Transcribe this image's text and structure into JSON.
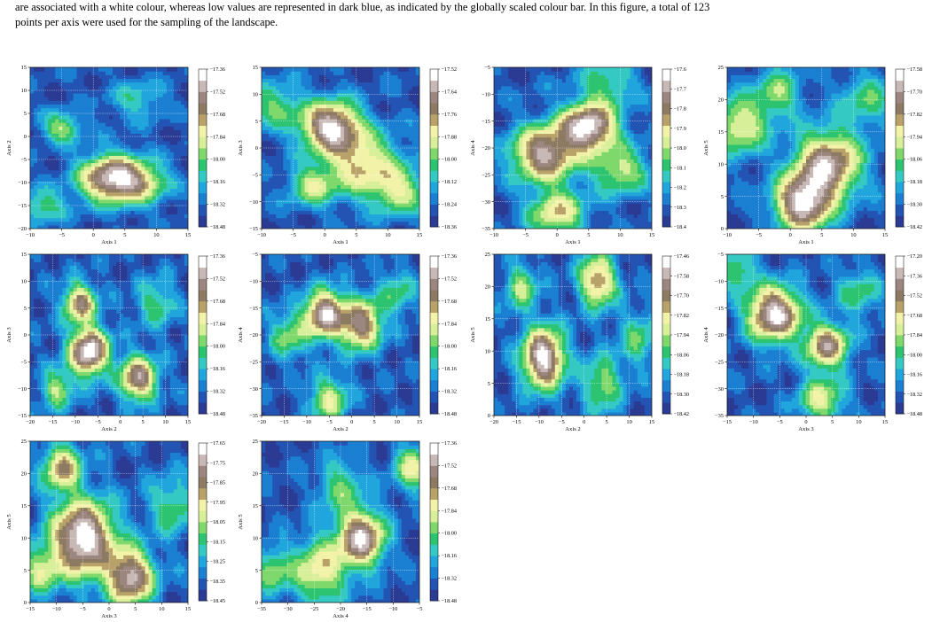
{
  "caption": {
    "lines": [
      "are associated with a white colour, whereas low values are represented in dark blue, as indicated by the globally scaled colour bar. In this figure, a total of 123",
      "points per axis were used for the sampling of the landscape."
    ]
  },
  "colormap": [
    "#2b3a93",
    "#2354b4",
    "#1b7fd2",
    "#20a6dd",
    "#35c9c3",
    "#2cc470",
    "#7fd86c",
    "#d8ef9a",
    "#f2f2a8",
    "#b8a26a",
    "#8c7a62",
    "#9c8680",
    "#c8b8b6",
    "#ffffff"
  ],
  "chart_data": [
    {
      "type": "heatmap",
      "xlabel": "Axis 1",
      "ylabel": "Axis 2",
      "xlim": [
        -10,
        15
      ],
      "ylim": [
        -20,
        15
      ],
      "xticks": [
        "-10",
        "-5",
        "0",
        "5",
        "10",
        "15"
      ],
      "yticks": [
        "-20",
        "-15",
        "-10",
        "-5",
        "0",
        "5",
        "10",
        "15"
      ],
      "colorbar": {
        "range": [
          -18.48,
          -17.36
        ],
        "ticks": [
          "-17.36",
          "-17.52",
          "-17.68",
          "-17.84",
          "-18.00",
          "-18.16",
          "-18.32",
          "-18.48"
        ]
      },
      "peaks": [
        [
          3,
          -9,
          1.0,
          3.5
        ],
        [
          -5,
          2,
          0.45,
          2.2
        ],
        [
          8,
          -10,
          0.4,
          3
        ],
        [
          -8,
          -15,
          0.35,
          2.5
        ],
        [
          7,
          8,
          0.25,
          3
        ]
      ]
    },
    {
      "type": "heatmap",
      "xlabel": "Axis 1",
      "ylabel": "Axis 3",
      "xlim": [
        -10,
        15
      ],
      "ylim": [
        -15,
        15
      ],
      "xticks": [
        "-10",
        "-5",
        "0",
        "5",
        "10",
        "15"
      ],
      "yticks": [
        "-15",
        "-10",
        "-5",
        "0",
        "5",
        "10",
        "15"
      ],
      "colorbar": {
        "range": [
          -18.36,
          -17.52
        ],
        "ticks": [
          "-17.52",
          "-17.64",
          "-17.76",
          "-17.88",
          "-18.00",
          "-18.12",
          "-18.24",
          "-18.36"
        ]
      },
      "peaks": [
        [
          1,
          4,
          1.0,
          3.2
        ],
        [
          6,
          -3,
          0.6,
          4
        ],
        [
          -2,
          -7,
          0.45,
          2.5
        ],
        [
          12,
          -8,
          0.45,
          3
        ],
        [
          -8,
          8,
          0.35,
          3
        ]
      ]
    },
    {
      "type": "heatmap",
      "xlabel": "Axis 1",
      "ylabel": "Axis 4",
      "xlim": [
        -10,
        15
      ],
      "ylim": [
        -35,
        -5
      ],
      "xticks": [
        "-10",
        "-5",
        "0",
        "5",
        "10",
        "15"
      ],
      "yticks": [
        "-35",
        "-30",
        "-25",
        "-20",
        "-15",
        "-10",
        "-5"
      ],
      "colorbar": {
        "range": [
          -18.4,
          -17.6
        ],
        "ticks": [
          "-17.6",
          "-17.7",
          "-17.8",
          "-17.9",
          "-18.0",
          "-18.1",
          "-18.2",
          "-18.3",
          "-18.4"
        ]
      },
      "peaks": [
        [
          5,
          -16,
          1.0,
          3
        ],
        [
          -2,
          -21,
          0.85,
          3.5
        ],
        [
          0,
          -32,
          0.55,
          3
        ],
        [
          10,
          -24,
          0.45,
          3
        ],
        [
          8,
          -8,
          0.3,
          3
        ]
      ]
    },
    {
      "type": "heatmap",
      "xlabel": "Axis 1",
      "ylabel": "Axis 5",
      "xlim": [
        -10,
        15
      ],
      "ylim": [
        0,
        25
      ],
      "xticks": [
        "-10",
        "-5",
        "0",
        "5",
        "10",
        "15"
      ],
      "yticks": [
        "0",
        "5",
        "10",
        "15",
        "20",
        "25"
      ],
      "colorbar": {
        "range": [
          -18.42,
          -17.58
        ],
        "ticks": [
          "-17.58",
          "-17.70",
          "-17.82",
          "-17.94",
          "-18.06",
          "-18.18",
          "-18.30",
          "-18.42"
        ]
      },
      "peaks": [
        [
          2,
          4,
          1.0,
          3
        ],
        [
          6,
          10,
          0.9,
          3.5
        ],
        [
          -8,
          16,
          0.55,
          3
        ],
        [
          -2,
          21,
          0.4,
          2.5
        ],
        [
          12,
          20,
          0.3,
          3
        ]
      ]
    },
    {
      "type": "heatmap",
      "xlabel": "Axis 2",
      "ylabel": "Axis 3",
      "xlim": [
        -20,
        15
      ],
      "ylim": [
        -15,
        15
      ],
      "xticks": [
        "-20",
        "-15",
        "-10",
        "-5",
        "0",
        "5",
        "10",
        "15"
      ],
      "yticks": [
        "-15",
        "-10",
        "-5",
        "0",
        "5",
        "10",
        "15"
      ],
      "colorbar": {
        "range": [
          -18.48,
          -17.36
        ],
        "ticks": [
          "-17.36",
          "-17.52",
          "-17.68",
          "-17.84",
          "-18.00",
          "-18.16",
          "-18.32",
          "-18.48"
        ]
      },
      "peaks": [
        [
          -7,
          -3,
          1.0,
          3
        ],
        [
          -9,
          6,
          0.7,
          2.5
        ],
        [
          4,
          -8,
          0.8,
          2.8
        ],
        [
          -14,
          -10,
          0.4,
          2.5
        ],
        [
          8,
          6,
          0.3,
          3
        ]
      ]
    },
    {
      "type": "heatmap",
      "xlabel": "Axis 2",
      "ylabel": "Axis 4",
      "xlim": [
        -20,
        15
      ],
      "ylim": [
        -35,
        -5
      ],
      "xticks": [
        "-20",
        "-15",
        "-10",
        "-5",
        "0",
        "5",
        "10",
        "15"
      ],
      "yticks": [
        "-35",
        "-30",
        "-25",
        "-20",
        "-15",
        "-10",
        "-5"
      ],
      "colorbar": {
        "range": [
          -18.48,
          -17.36
        ],
        "ticks": [
          "-17.36",
          "-17.52",
          "-17.68",
          "-17.84",
          "-18.00",
          "-18.16",
          "-18.32",
          "-18.48"
        ]
      },
      "peaks": [
        [
          -6,
          -16,
          1.0,
          3
        ],
        [
          2,
          -18,
          0.85,
          3.2
        ],
        [
          -5,
          -32,
          0.5,
          3
        ],
        [
          -14,
          -20,
          0.4,
          3
        ],
        [
          10,
          -12,
          0.3,
          3
        ]
      ]
    },
    {
      "type": "heatmap",
      "xlabel": "Axis 2",
      "ylabel": "Axis 5",
      "xlim": [
        -20,
        15
      ],
      "ylim": [
        0,
        25
      ],
      "xticks": [
        "-20",
        "-15",
        "-10",
        "-5",
        "0",
        "5",
        "10",
        "15"
      ],
      "yticks": [
        "0",
        "5",
        "10",
        "15",
        "20",
        "25"
      ],
      "colorbar": {
        "range": [
          -18.42,
          -17.46
        ],
        "ticks": [
          "-17.46",
          "-17.58",
          "-17.70",
          "-17.82",
          "-17.94",
          "-18.06",
          "-18.18",
          "-18.30",
          "-18.42"
        ]
      },
      "peaks": [
        [
          -9,
          9,
          1.0,
          3.2
        ],
        [
          3,
          21,
          0.7,
          2.8
        ],
        [
          -14,
          20,
          0.4,
          2.5
        ],
        [
          4,
          5,
          0.4,
          3
        ],
        [
          12,
          12,
          0.3,
          3
        ]
      ]
    },
    {
      "type": "heatmap",
      "xlabel": "Axis 3",
      "ylabel": "Axis 4",
      "xlim": [
        -15,
        15
      ],
      "ylim": [
        -35,
        -5
      ],
      "xticks": [
        "-15",
        "-10",
        "-5",
        "0",
        "5",
        "10",
        "15"
      ],
      "yticks": [
        "-35",
        "-30",
        "-25",
        "-20",
        "-15",
        "-10",
        "-5"
      ],
      "colorbar": {
        "range": [
          -18.48,
          -17.2
        ],
        "ticks": [
          "-17.20",
          "-17.36",
          "-17.52",
          "-17.68",
          "-17.84",
          "-18.00",
          "-18.16",
          "-18.32",
          "-18.48"
        ]
      },
      "peaks": [
        [
          -6,
          -16,
          1.0,
          3.5
        ],
        [
          4,
          -22,
          0.8,
          2.8
        ],
        [
          3,
          -32,
          0.5,
          3
        ],
        [
          -13,
          -8,
          0.35,
          2.5
        ],
        [
          10,
          -12,
          0.3,
          3
        ]
      ]
    },
    {
      "type": "heatmap",
      "xlabel": "Axis 3",
      "ylabel": "Axis 5",
      "xlim": [
        -15,
        15
      ],
      "ylim": [
        0,
        25
      ],
      "xticks": [
        "-15",
        "-10",
        "-5",
        "0",
        "5",
        "10",
        "15"
      ],
      "yticks": [
        "0",
        "5",
        "10",
        "15",
        "20",
        "25"
      ],
      "colorbar": {
        "range": [
          -18.45,
          -17.65
        ],
        "ticks": [
          "-17.65",
          "-17.75",
          "-17.85",
          "-17.95",
          "-18.05",
          "-18.15",
          "-18.25",
          "-18.35",
          "-18.45"
        ]
      },
      "peaks": [
        [
          -5,
          10,
          1.0,
          4
        ],
        [
          4,
          4,
          0.85,
          3
        ],
        [
          -9,
          21,
          0.6,
          2.5
        ],
        [
          -13,
          5,
          0.4,
          2.5
        ],
        [
          12,
          15,
          0.3,
          3
        ]
      ]
    },
    {
      "type": "heatmap",
      "xlabel": "Axis 4",
      "ylabel": "Axis 5",
      "xlim": [
        -35,
        -5
      ],
      "ylim": [
        0,
        25
      ],
      "xticks": [
        "-35",
        "-30",
        "-25",
        "-20",
        "-15",
        "-10",
        "-5"
      ],
      "yticks": [
        "0",
        "5",
        "10",
        "15",
        "20",
        "25"
      ],
      "colorbar": {
        "range": [
          -18.48,
          -17.36
        ],
        "ticks": [
          "-17.36",
          "-17.52",
          "-17.68",
          "-17.84",
          "-18.00",
          "-18.16",
          "-18.32",
          "-18.48"
        ]
      },
      "peaks": [
        [
          -16,
          10,
          1.0,
          3
        ],
        [
          -24,
          5,
          0.6,
          3.5
        ],
        [
          -6,
          21,
          0.55,
          2.5
        ],
        [
          -33,
          5,
          0.4,
          2.5
        ],
        [
          -20,
          18,
          0.35,
          3
        ]
      ]
    }
  ]
}
